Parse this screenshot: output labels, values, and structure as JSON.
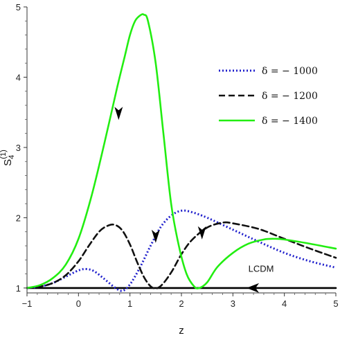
{
  "chart_data": {
    "type": "line",
    "title": "",
    "xlabel": "z",
    "ylabel_main": "S",
    "ylabel_sub": "4",
    "ylabel_sup": "(1)",
    "xlim": [
      -1,
      5
    ],
    "ylim": [
      0.93,
      5.0
    ],
    "xticks": [
      -1,
      0,
      1,
      2,
      3,
      4,
      5
    ],
    "yticks": [
      1,
      2,
      3,
      4,
      5
    ],
    "x_tick_labels": [
      "−1",
      "0",
      "1",
      "2",
      "3",
      "4",
      "5"
    ],
    "y_tick_labels": [
      "1",
      "2",
      "3",
      "4",
      "5"
    ],
    "legend_position": "top-right",
    "annotation": {
      "text": "LCDM",
      "x": 3.3,
      "y": 1.27
    },
    "series": [
      {
        "name": "δ = − 1000",
        "color": "#1f1fcc",
        "dash": "dotted",
        "x": [
          -1.0,
          -0.75,
          -0.5,
          -0.25,
          0.0,
          0.15,
          0.3,
          0.5,
          0.7,
          0.85,
          1.0,
          1.2,
          1.4,
          1.6,
          1.8,
          2.0,
          2.2,
          2.5,
          3.0,
          3.5,
          4.0,
          4.5,
          5.0
        ],
        "y": [
          1.0,
          1.02,
          1.07,
          1.16,
          1.25,
          1.27,
          1.24,
          1.13,
          1.01,
          0.96,
          1.05,
          1.3,
          1.6,
          1.87,
          2.03,
          2.1,
          2.08,
          2.0,
          1.83,
          1.66,
          1.5,
          1.38,
          1.29
        ],
        "arrow": {
          "x": 1.5,
          "y": 1.75,
          "dir": "down"
        }
      },
      {
        "name": "δ = − 1200",
        "color": "#111111",
        "dash": "dashed",
        "x": [
          -1.0,
          -0.75,
          -0.5,
          -0.25,
          0.0,
          0.2,
          0.4,
          0.55,
          0.7,
          0.85,
          1.0,
          1.15,
          1.3,
          1.45,
          1.6,
          1.8,
          2.0,
          2.2,
          2.5,
          2.8,
          3.0,
          3.5,
          4.0,
          4.5,
          5.0
        ],
        "y": [
          1.0,
          1.02,
          1.07,
          1.18,
          1.38,
          1.6,
          1.8,
          1.88,
          1.9,
          1.82,
          1.62,
          1.35,
          1.12,
          1.0,
          1.03,
          1.22,
          1.48,
          1.68,
          1.86,
          1.93,
          1.92,
          1.84,
          1.7,
          1.56,
          1.43
        ],
        "arrow": {
          "x": 2.4,
          "y": 1.8,
          "dir": "down"
        }
      },
      {
        "name": "δ = − 1400",
        "color": "#22ee11",
        "dash": "solid",
        "x": [
          -1.0,
          -0.75,
          -0.5,
          -0.25,
          0.0,
          0.25,
          0.5,
          0.75,
          0.9,
          1.0,
          1.1,
          1.2,
          1.27,
          1.35,
          1.5,
          1.65,
          1.8,
          1.95,
          2.1,
          2.25,
          2.35,
          2.5,
          2.7,
          3.0,
          3.3,
          3.6,
          3.8,
          4.0,
          4.5,
          5.0
        ],
        "y": [
          1.0,
          1.04,
          1.14,
          1.33,
          1.7,
          2.3,
          3.05,
          3.85,
          4.3,
          4.6,
          4.8,
          4.88,
          4.89,
          4.8,
          4.2,
          3.2,
          2.2,
          1.6,
          1.2,
          1.02,
          1.0,
          1.08,
          1.3,
          1.5,
          1.63,
          1.69,
          1.7,
          1.69,
          1.63,
          1.56
        ],
        "arrow": {
          "x": 0.78,
          "y": 3.5,
          "dir": "down"
        }
      },
      {
        "name": "LCDM",
        "color": "#000000",
        "dash": "solid",
        "x": [
          -1.0,
          5.0
        ],
        "y": [
          1.0,
          1.0
        ],
        "arrow": {
          "x": 3.4,
          "y": 1.0,
          "dir": "left"
        }
      }
    ],
    "legend": [
      {
        "label": "δ = − 1000",
        "series": 0
      },
      {
        "label": "δ = − 1200",
        "series": 1
      },
      {
        "label": "δ = − 1400",
        "series": 2
      }
    ]
  }
}
